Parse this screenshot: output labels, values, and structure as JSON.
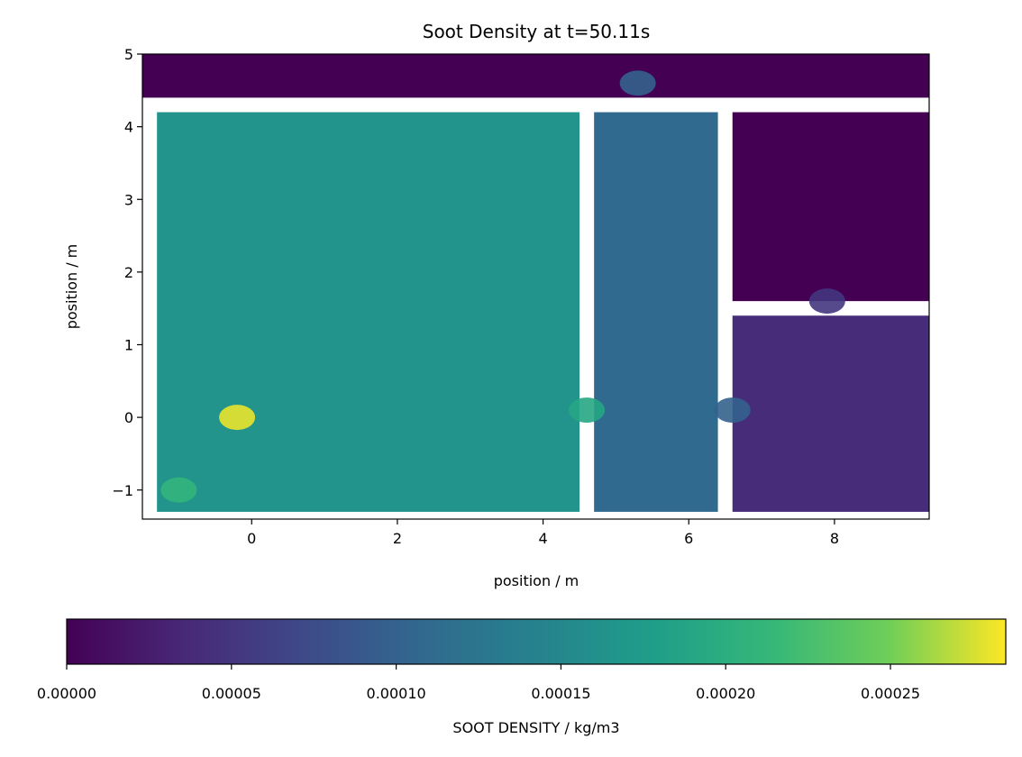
{
  "chart_data": {
    "type": "heatmap",
    "title": "Soot Density at t=50.11s",
    "xlabel": "position / m",
    "ylabel": "position / m",
    "xlim": [
      -1.5,
      9.3
    ],
    "ylim": [
      -1.4,
      5.0
    ],
    "xticks": [
      0,
      2,
      4,
      6,
      8
    ],
    "yticks": [
      -1,
      0,
      1,
      2,
      3,
      4,
      5
    ],
    "xtick_labels": [
      "0",
      "2",
      "4",
      "6",
      "8"
    ],
    "ytick_labels": [
      "−1",
      "0",
      "1",
      "2",
      "3",
      "4",
      "5"
    ],
    "colormap": "viridis",
    "colorbar": {
      "label": "SOOT DENSITY / kg/m3",
      "range": [
        0.0,
        0.000285
      ],
      "ticks": [
        0.0,
        5e-05,
        0.0001,
        0.00015,
        0.0002,
        0.00025
      ],
      "tick_labels": [
        "0.00000",
        "0.00005",
        "0.00010",
        "0.00015",
        "0.00020",
        "0.00025"
      ],
      "orientation": "horizontal",
      "placement": "bottom"
    },
    "regions": [
      {
        "name": "left-room",
        "x": [
          -1.3,
          4.5
        ],
        "y": [
          -1.3,
          4.2
        ],
        "value": 0.000165
      },
      {
        "name": "middle-corridor",
        "x": [
          4.7,
          6.4
        ],
        "y": [
          -1.3,
          4.2
        ],
        "value": 0.00011
      },
      {
        "name": "lower-right-room",
        "x": [
          6.6,
          9.3
        ],
        "y": [
          -1.3,
          1.4
        ],
        "value": 4e-05
      },
      {
        "name": "upper-right-room",
        "x": [
          6.6,
          9.3
        ],
        "y": [
          1.6,
          4.2
        ],
        "value": 0.0
      },
      {
        "name": "top-strip",
        "x": [
          -1.5,
          9.3
        ],
        "y": [
          4.4,
          5.0
        ],
        "value": 0.0
      }
    ],
    "hotspots": [
      {
        "name": "source",
        "x": -0.2,
        "y": 0.0,
        "value": 0.00028
      },
      {
        "name": "left-corner-plume",
        "x": -1.0,
        "y": -1.0,
        "value": 0.00021
      },
      {
        "name": "door-plume",
        "x": 4.6,
        "y": 0.1,
        "value": 0.00019
      },
      {
        "name": "top-vent-plume",
        "x": 5.3,
        "y": 4.6,
        "value": 0.0001
      },
      {
        "name": "right-door-plume",
        "x": 6.6,
        "y": 0.1,
        "value": 0.0001
      },
      {
        "name": "upper-right-opening-plume",
        "x": 7.9,
        "y": 1.6,
        "value": 5e-05
      }
    ]
  }
}
